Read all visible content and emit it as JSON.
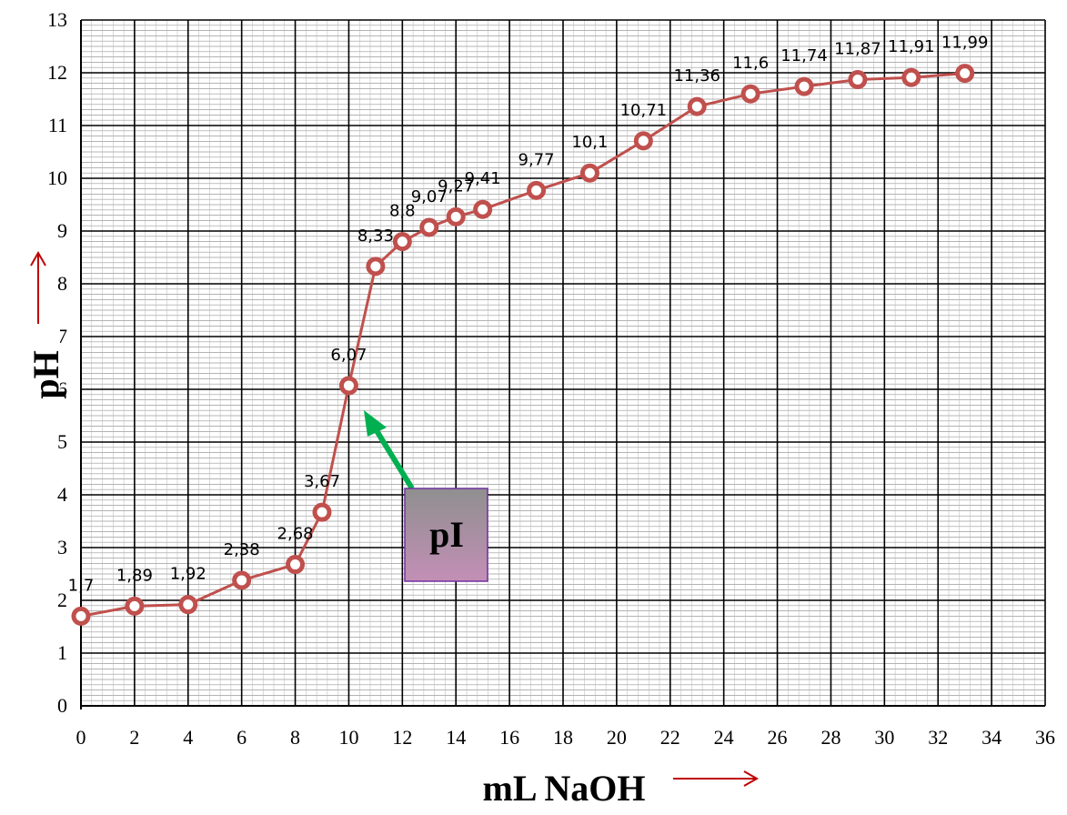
{
  "chart_data": {
    "type": "line",
    "xlabel": "mL NaOH",
    "ylabel": "pH",
    "xlim": [
      0,
      36
    ],
    "ylim": [
      0,
      13
    ],
    "x_ticks": [
      "0",
      "2",
      "4",
      "6",
      "8",
      "10",
      "12",
      "14",
      "16",
      "18",
      "20",
      "22",
      "24",
      "26",
      "28",
      "30",
      "32",
      "34",
      "36"
    ],
    "y_ticks": [
      "0",
      "1",
      "2",
      "3",
      "4",
      "5",
      "6",
      "7",
      "8",
      "9",
      "10",
      "11",
      "12",
      "13"
    ],
    "grid": true,
    "x": [
      0,
      2,
      4,
      6,
      8,
      9,
      10,
      11,
      12,
      13,
      14,
      15,
      17,
      19,
      21,
      23,
      25,
      27,
      29,
      31,
      33
    ],
    "y": [
      1.7,
      1.89,
      1.92,
      2.38,
      2.68,
      3.67,
      6.07,
      8.33,
      8.8,
      9.07,
      9.27,
      9.41,
      9.77,
      10.1,
      10.71,
      11.36,
      11.6,
      11.74,
      11.87,
      11.91,
      11.99
    ],
    "point_labels": [
      "1,7",
      "1,89",
      "1,92",
      "2,38",
      "2,68",
      "3,67",
      "6,07",
      "8,33",
      "8,8",
      "9,07",
      "9,27",
      "9,41",
      "9,77",
      "10,1",
      "10,71",
      "11,36",
      "11,6",
      "11,74",
      "11,87",
      "11,91",
      "11,99"
    ],
    "annotation": {
      "text": "pI",
      "points_to_x": 10,
      "points_to_y": 6.07
    },
    "colors": {
      "line": "#c0504d",
      "marker_fill": "#ffffff",
      "arrow_green": "#00b050",
      "arrow_red": "#c00000",
      "box_top": "#888888",
      "box_bottom": "#c38fb6",
      "box_border": "#7030a0"
    }
  }
}
